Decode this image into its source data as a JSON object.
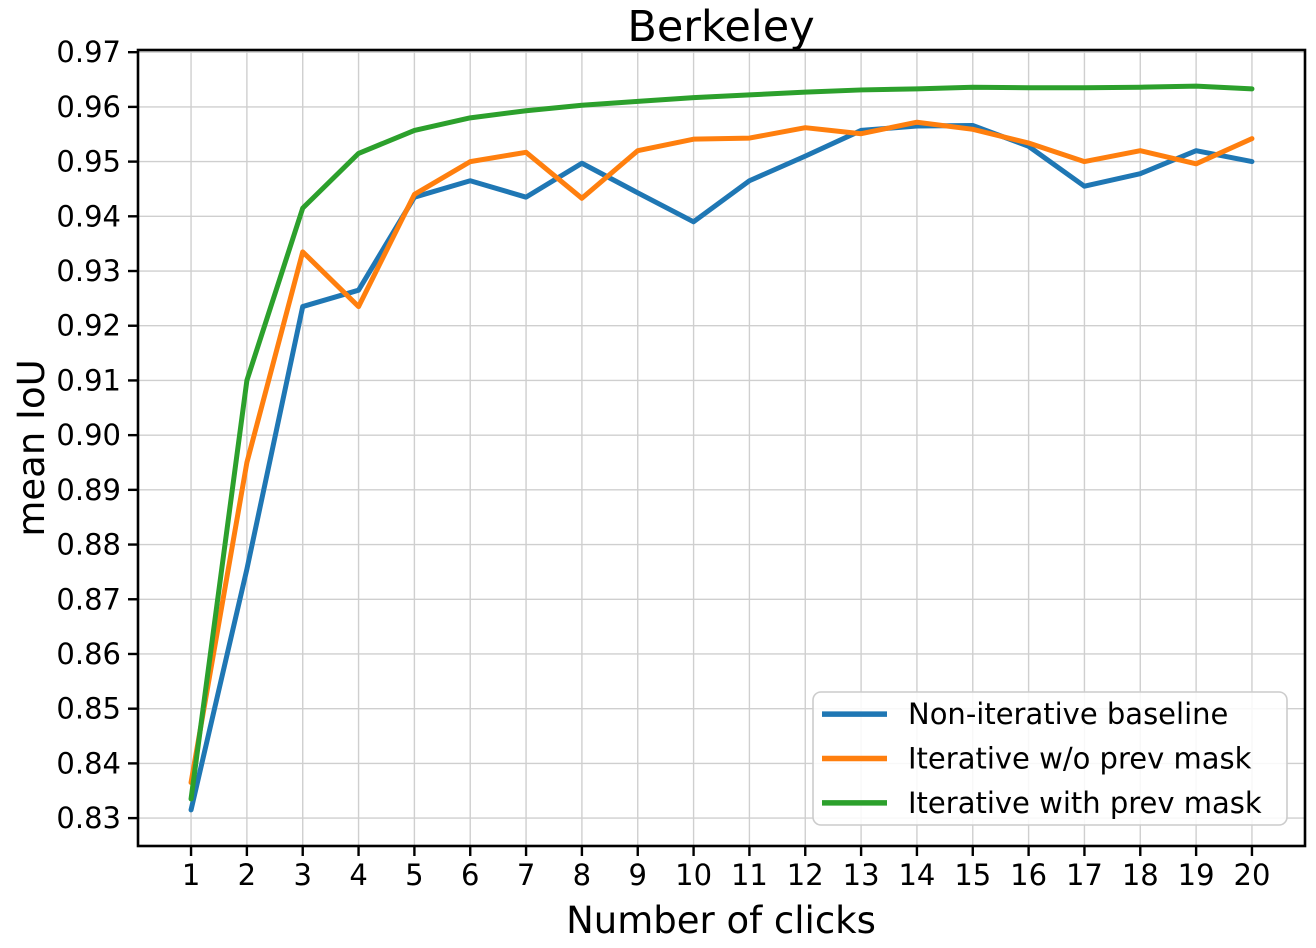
{
  "figure": {
    "title": "Berkeley",
    "xlabel": "Number of clicks",
    "ylabel": "mean IoU"
  },
  "chart_data": {
    "type": "line",
    "title": "Berkeley",
    "xlabel": "Number of clicks",
    "ylabel": "mean IoU",
    "x": [
      1,
      2,
      3,
      4,
      5,
      6,
      7,
      8,
      9,
      10,
      11,
      12,
      13,
      14,
      15,
      16,
      17,
      18,
      19,
      20
    ],
    "series": [
      {
        "name": "Non-iterative baseline",
        "color": "#1f77b4",
        "values": [
          0.8315,
          0.8755,
          0.9235,
          0.9265,
          0.9435,
          0.9465,
          0.9435,
          0.9497,
          0.9443,
          0.939,
          0.9465,
          0.951,
          0.9557,
          0.9565,
          0.9566,
          0.9528,
          0.9455,
          0.9478,
          0.952,
          0.95
        ]
      },
      {
        "name": "Iterative w/o prev mask",
        "color": "#ff7f0e",
        "values": [
          0.8365,
          0.895,
          0.9335,
          0.9235,
          0.944,
          0.95,
          0.9517,
          0.9433,
          0.952,
          0.9541,
          0.9543,
          0.9562,
          0.9551,
          0.9572,
          0.9559,
          0.9534,
          0.95,
          0.952,
          0.9496,
          0.9542
        ]
      },
      {
        "name": "Iterative with prev mask",
        "color": "#2ca02c",
        "values": [
          0.8335,
          0.91,
          0.9415,
          0.9515,
          0.9557,
          0.958,
          0.9593,
          0.9603,
          0.961,
          0.9617,
          0.9622,
          0.9627,
          0.9631,
          0.9633,
          0.9636,
          0.9635,
          0.9635,
          0.9636,
          0.9638,
          0.9633
        ]
      }
    ],
    "xticks": [
      1,
      2,
      3,
      4,
      5,
      6,
      7,
      8,
      9,
      10,
      11,
      12,
      13,
      14,
      15,
      16,
      17,
      18,
      19,
      20
    ],
    "yticks": [
      0.83,
      0.84,
      0.85,
      0.86,
      0.87,
      0.88,
      0.89,
      0.9,
      0.91,
      0.92,
      0.93,
      0.94,
      0.95,
      0.96,
      0.97
    ],
    "xlim": [
      0.05,
      20.95
    ],
    "ylim": [
      0.8249,
      0.9704
    ],
    "grid": true,
    "legend_position": "lower right",
    "colors": {
      "grid": "#cfcfcf",
      "spine": "#000000",
      "background": "#ffffff",
      "legend_border": "#cccccc",
      "legend_background": "#ffffff"
    }
  }
}
